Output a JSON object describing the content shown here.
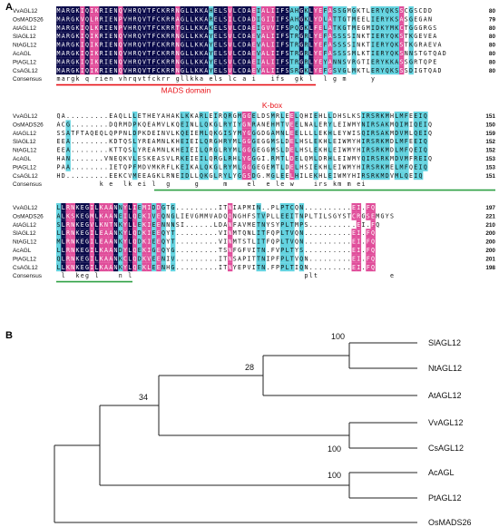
{
  "panel_a": {
    "letter": "A"
  },
  "panel_b": {
    "letter": "B"
  },
  "colors": {
    "identical": "#0a0a4a",
    "high": "#e04d9a",
    "low": "#63d3e0",
    "domain_text": "#e8141a",
    "mads_bar": "#e8141a",
    "kbox_bar": "#2ea043"
  },
  "blocks": [
    {
      "rows": [
        {
          "name": "VvAGL12",
          "seq": "MARGKIQIKRIENQVHRQVTFCKRRNGLLKKAHELSVLCDAEIALIIFSAHGKLYEFASSGMGKTLERYQKSSCGSCDD",
          "num": "80"
        },
        {
          "name": "OsMADS26",
          "seq": "MARGKVQLRRIENPVHRQVTFCKRRAGLLKKARELSILCDADIGIIIFSAHGKLYDLATTGTMEELIERYKSASGEGAN",
          "num": "79"
        },
        {
          "name": "AtAGL12",
          "seq": "MARGKIQLKRIENPVHRQVTFCKRRTGLLKKAKELSVLCDAEIGVVIFSPQGKLFELATKGTMEGMIDKYMKCTGGGRGS",
          "num": "80"
        },
        {
          "name": "SlAGL12",
          "seq": "MARGKIQIKRIENQVHRQVTFCKRRNGLLKKAYELSVLCDAEVALIIFSTRGRLYEFASSSSINKTIERYQKSTKGEVEA",
          "num": "80"
        },
        {
          "name": "NtAGL12",
          "seq": "MARGKIQIKRIENQVHRQVTFCKRRNGLLKKAYELSVLCDAEVALIIFSTRGRLYEFASSSSINKTIERYQKSTKGRAEVA",
          "num": "80"
        },
        {
          "name": "AcAGL",
          "seq": "MARGKIQIKRIENQVHRQVTFCKRRNGLLKKAYELSVLCDAEVALIIFSTRGRLYEFASSSSMLKTIERYQKSNNSTGTQAD",
          "num": "80"
        },
        {
          "name": "PtAGL12",
          "seq": "MARGKIQIKRIENQVHRQVTFCKRRNGLLKKAYELSVLCDAEIALIIFSTRGRLYEYANNSVRGTIERYKKASSGRTQPE",
          "num": "80"
        },
        {
          "name": "CsAGL12",
          "seq": "MARGKIQIKRIENQVHRQVTFCKRRNGLLKKAYELSVLCDAEVALIIFSSRGKLYEFGSVGLMKTLERYQKSSSDIGTQAD",
          "num": "80"
        }
      ],
      "consensus": "margk q rien vhrqvtfckrr gllkka els lc a i   ifs  gk l  l g m     y",
      "domain_label": "MADS domain",
      "bar": "mads"
    },
    {
      "rows": [
        {
          "name": "VvAGL12",
          "seq": "QA.........EAQLLLETHEYAHAKLKKARLEIRQRGMGGELDSMRLEELQHIEHLLDHSLKSIRSRKMHLMFEEIQ",
          "num": "151"
        },
        {
          "name": "OsMADS26",
          "seq": "ACG........DQRMDPKQEAMVLKQEINLLQKGLRYIYGNRANEHMTVEELNALERYLEIWMYNIRSAKMQIMIQEIQ",
          "num": "150"
        },
        {
          "name": "AtAGL12",
          "seq": "SSATFTAQEQLQPPNLDPKDEINVLKQEIEMLQKGISYMYGGGDGAMNLEELLLLEKHLEYWISQIRSAKMDVMLQEIQ",
          "num": "159"
        },
        {
          "name": "SlAGL12",
          "seq": "EEA........KDTQSLYREAMNLKHEIEILQRGHRYMLGGGEGGMSLDELHSLEKHLEIWMYHIRSRKMDLMFEEIQ",
          "num": "152"
        },
        {
          "name": "NtAGL12",
          "seq": "EEA........KTTQSLYREAMNLKHEIEILQRGLRYMLGGGEGGMSLDELHSLEKHLEIWMYHIRSRKMDLMFQEIQ",
          "num": "152"
        },
        {
          "name": "AcAGL",
          "seq": "HAN.......VNEQKVLESKEASVLRKEIEILQRGLRHLYGGGI.RMTLDELQMLDRHLEIWMYQIRSRKMDVMFREIQ",
          "num": "153"
        },
        {
          "name": "PtAGL12",
          "seq": "PAA........IETQPFMDVMKRFLKEIKALQKGLRYMLGGGEGEMTLDELHSIEKHLEIWMYHIRSRKMELMFQEIQ",
          "num": "153"
        },
        {
          "name": "CsAGL12",
          "seq": "HD.........EEKCVMEEAGKLRNEIDLLQKGLRYLYGGSDG.MGLEELHILEKHLEIWMYHIRSRKMDVMLQEIQ",
          "num": "151"
        }
      ],
      "consensus": "         k e  lk ei l  g     g     m    el  e le w    irs km m ei",
      "domain_label": "K-box",
      "bar": "kbox"
    },
    {
      "rows": [
        {
          "name": "VvAGL12",
          "seq": "LLRNKEGILKAANNYLIEMIDDGTG.........ITNIAPMIN..PLPTCQN..........EI.FQ",
          "num": "197"
        },
        {
          "name": "OsMADS26",
          "seq": "ALKSKEGMLKAANEILQEKIVEQNGLIEVGMMVADQQNGHFSTVPLLEEITNPLTILSGYSTCRGSEMGYS",
          "num": "221"
        },
        {
          "name": "AtAGL12",
          "seq": "SLRNKEGVLKNTNKYLLEKIEENNNSI......LDANFAVMETNYSYPLTMPS..........EI.FQ",
          "num": "210"
        },
        {
          "name": "SlAGL12",
          "seq": "LLRNKEGILEAANKYLQDKIEEQYT.........VINMTQNLITFQPLTVQN..........EI.FQ",
          "num": "200"
        },
        {
          "name": "NtAGL12",
          "seq": "MLRNKEGILEAANKYLQDKIEEQYT.........VINMTSTLITFQPLTVQN..........EI.FQ",
          "num": "200"
        },
        {
          "name": "AcAGL",
          "seq": "LLRNKEGILKAANDYLQEKIGEQYG.........TSNFGFVITN.FVPLTYS..........EI.FQ",
          "num": "200"
        },
        {
          "name": "PtAGL12",
          "seq": "QLRNKEGILKAANKCLQDKVEENIV.........ITNSAPITTNIPFPLTVQN.........EI.FQ",
          "num": "201"
        },
        {
          "name": "CsAGL12",
          "seq": "LLKNKEGILKAANKYLQEKLEENHG.........ITNYEPVITN.FPPLTIQN.........EI.FQ",
          "num": "198"
        }
      ],
      "consensus": " l  keg l    n l                                    plt               e",
      "domain_label": "",
      "bar": "kbox_end"
    }
  ],
  "tree": {
    "taxa": [
      "SlAGL12",
      "NtAGL12",
      "AtAGL12",
      "VvAGL12",
      "CsAGL12",
      "AcAGL",
      "PtAGL12",
      "OsMADS26"
    ],
    "bootstraps": [
      "100",
      "28",
      "34",
      "100",
      "100"
    ]
  }
}
